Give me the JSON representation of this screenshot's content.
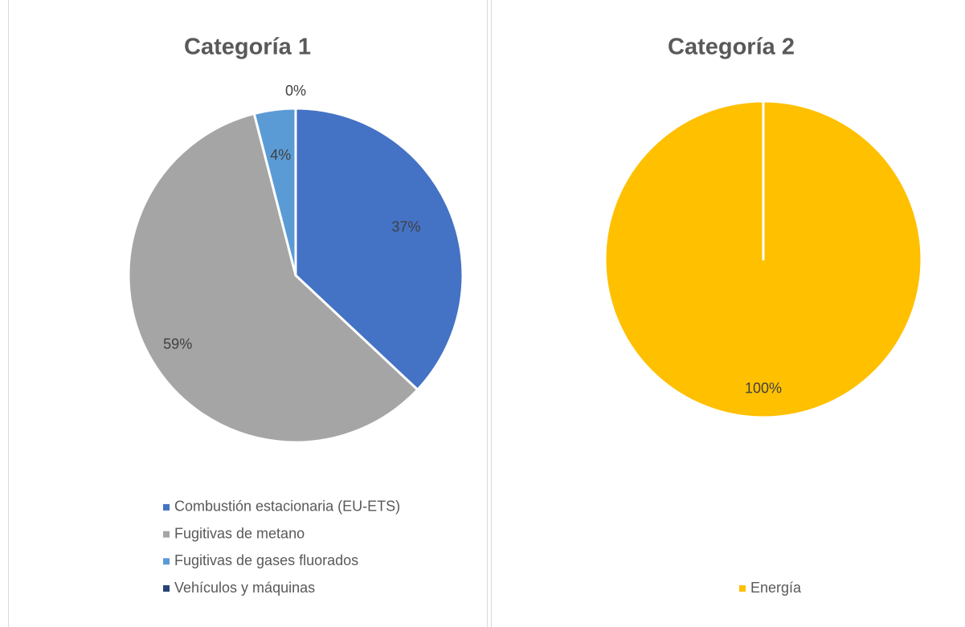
{
  "chart_data": [
    {
      "type": "pie",
      "title": "Categoría 1",
      "categories": [
        "Combustión estacionaria (EU-ETS)",
        "Fugitivas de metano",
        "Fugitivas de gases fluorados",
        "Vehículos y máquinas"
      ],
      "values": [
        37,
        59,
        4,
        0
      ],
      "value_labels": [
        "37%",
        "59%",
        "4%",
        "0%"
      ],
      "colors": [
        "#4472c4",
        "#a5a5a5",
        "#5b9bd5",
        "#264478"
      ]
    },
    {
      "type": "pie",
      "title": "Categoría 2",
      "categories": [
        "Energía"
      ],
      "values": [
        100
      ],
      "value_labels": [
        "100%"
      ],
      "colors": [
        "#ffc000"
      ]
    }
  ]
}
